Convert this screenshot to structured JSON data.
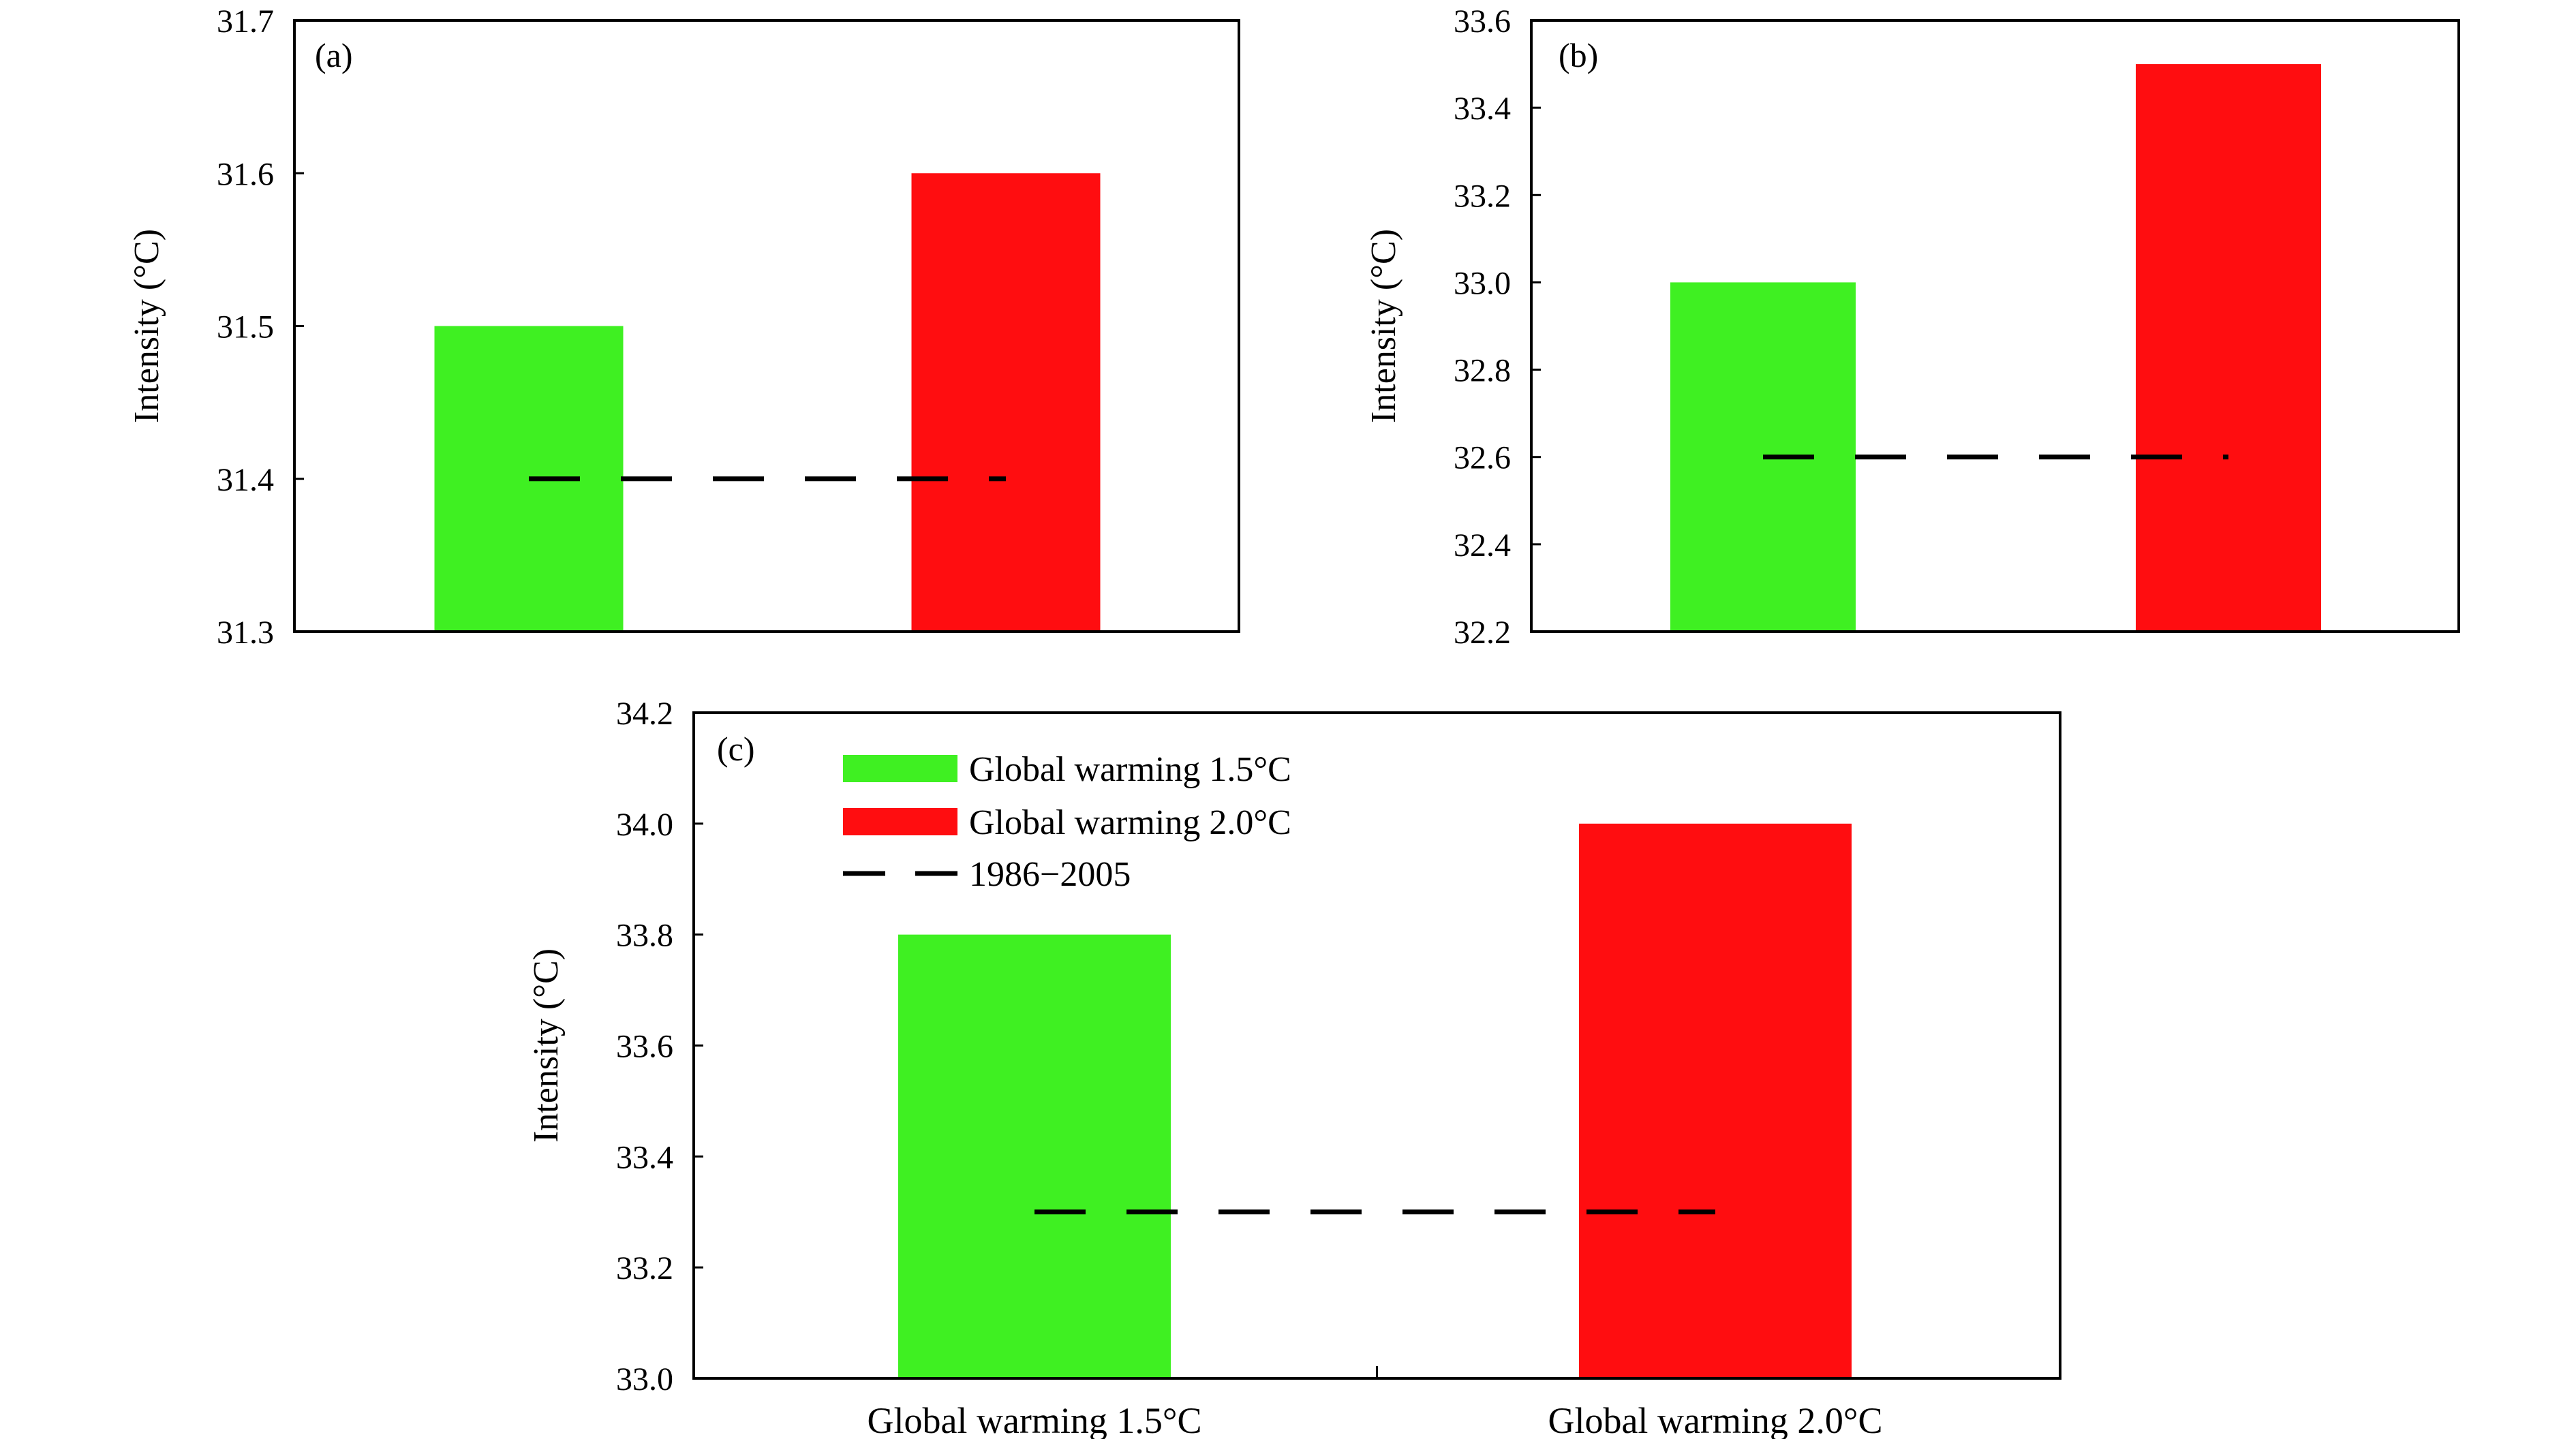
{
  "colors": {
    "green": "#3ff022",
    "red": "#ff0d10",
    "baseline": "#000000"
  },
  "legend": {
    "entries": [
      {
        "label": "Global warming 1.5°C",
        "color": "#3ff022",
        "kind": "bar"
      },
      {
        "label": "Global warming 2.0°C",
        "color": "#ff0d10",
        "kind": "bar"
      },
      {
        "label": "1986−2005",
        "color": "#000000",
        "kind": "dashed-line"
      }
    ]
  },
  "chart_data": [
    {
      "panel": "(a)",
      "type": "bar",
      "ylabel": "Intensity (°C)",
      "ylim": [
        31.3,
        31.7
      ],
      "yticks": [
        "31.3",
        "31.4",
        "31.5",
        "31.6",
        "31.7"
      ],
      "yticks_values": [
        31.3,
        31.4,
        31.5,
        31.6,
        31.7
      ],
      "categories": [
        "Global warming 1.5°C",
        "Global warming 2.0°C"
      ],
      "values": [
        31.5,
        31.6
      ],
      "baseline": {
        "label": "1986−2005",
        "value": 31.4
      },
      "show_category_labels": false
    },
    {
      "panel": "(b)",
      "type": "bar",
      "ylabel": "Intensity (°C)",
      "ylim": [
        32.2,
        33.6
      ],
      "yticks": [
        "32.2",
        "32.4",
        "32.6",
        "32.8",
        "33.0",
        "33.2",
        "33.4",
        "33.6"
      ],
      "yticks_values": [
        32.2,
        32.4,
        32.6,
        32.8,
        33.0,
        33.2,
        33.4,
        33.6
      ],
      "categories": [
        "Global warming 1.5°C",
        "Global warming 2.0°C"
      ],
      "values": [
        33.0,
        33.5
      ],
      "baseline": {
        "label": "1986−2005",
        "value": 32.6
      },
      "show_category_labels": false
    },
    {
      "panel": "(c)",
      "type": "bar",
      "ylabel": "Intensity (°C)",
      "ylim": [
        33.0,
        34.2
      ],
      "yticks": [
        "33.0",
        "33.2",
        "33.4",
        "33.6",
        "33.8",
        "34.0",
        "34.2"
      ],
      "yticks_values": [
        33.0,
        33.2,
        33.4,
        33.6,
        33.8,
        34.0,
        34.2
      ],
      "categories": [
        "Global warming 1.5°C",
        "Global warming 2.0°C"
      ],
      "values": [
        33.8,
        34.0
      ],
      "baseline": {
        "label": "1986−2005",
        "value": 33.3
      },
      "show_category_labels": true,
      "legend": "top-left"
    }
  ]
}
